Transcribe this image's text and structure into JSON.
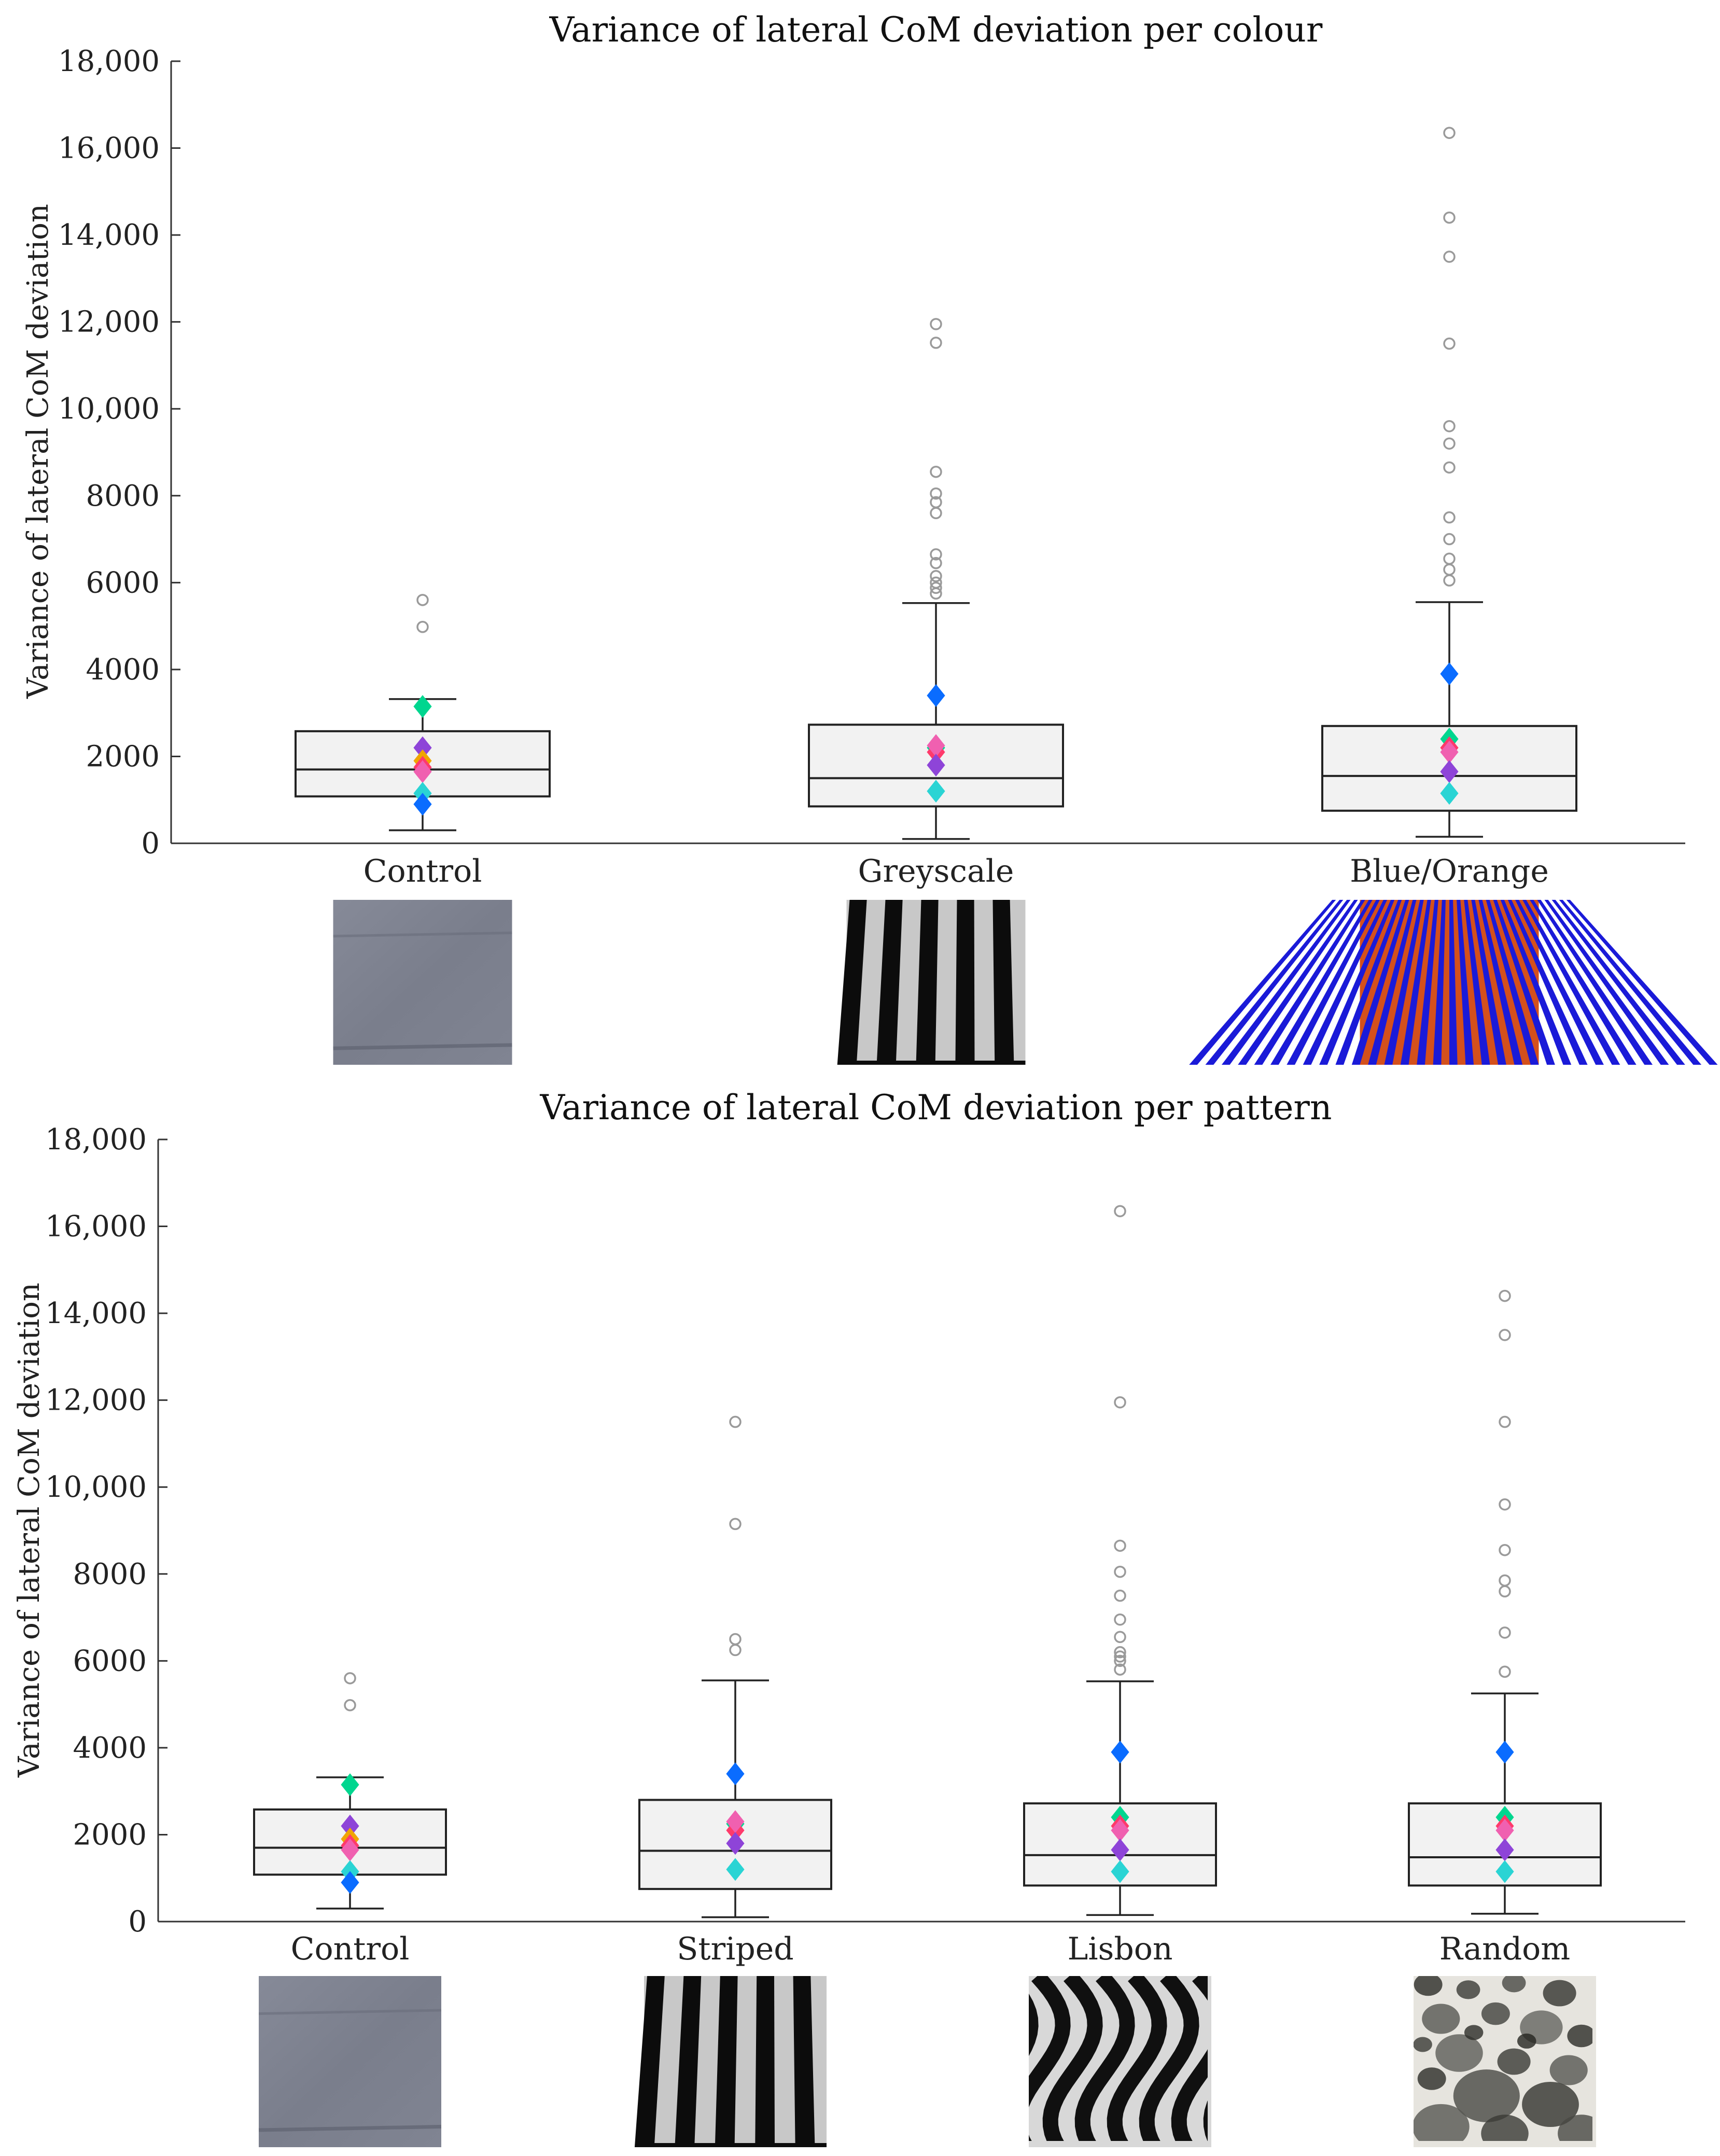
{
  "chart_data": [
    {
      "type": "boxplot",
      "title": "Variance of lateral CoM deviation per colour",
      "ylabel": "Variance of lateral CoM deviation",
      "xlabel": "",
      "ylim": [
        0,
        18000
      ],
      "yticks": [
        0,
        2000,
        4000,
        6000,
        8000,
        10000,
        12000,
        14000,
        16000,
        18000
      ],
      "ytick_labels": [
        "0",
        "2000",
        "4000",
        "6000",
        "8000",
        "10,000",
        "12,000",
        "14,000",
        "16,000",
        "18,000"
      ],
      "categories": [
        "Control",
        "Greyscale",
        "Blue/Orange"
      ],
      "boxes": [
        {
          "category": "Control",
          "whisker_low": 300,
          "q1": 1080,
          "median": 1700,
          "q3": 2580,
          "whisker_high": 3320,
          "outliers": [
            5600,
            4980
          ],
          "markers": [
            {
              "color": "#00d68f",
              "value": 3150
            },
            {
              "color": "#8e44d8",
              "value": 2200
            },
            {
              "color": "#f0a500",
              "value": 1900
            },
            {
              "color": "#ff3a6b",
              "value": 1750
            },
            {
              "color": "#f060b0",
              "value": 1650
            },
            {
              "color": "#2ad4d4",
              "value": 1150
            },
            {
              "color": "#0a6cff",
              "value": 900
            }
          ]
        },
        {
          "category": "Greyscale",
          "whisker_low": 100,
          "q1": 850,
          "median": 1500,
          "q3": 2730,
          "whisker_high": 5530,
          "outliers": [
            11950,
            11520,
            8550,
            8050,
            7850,
            7600,
            6650,
            6450,
            6150,
            6000,
            5880,
            5750
          ],
          "markers": [
            {
              "color": "#0a6cff",
              "value": 3400
            },
            {
              "color": "#00d68f",
              "value": 2200
            },
            {
              "color": "#ff3a6b",
              "value": 2100
            },
            {
              "color": "#f060b0",
              "value": 2250
            },
            {
              "color": "#8e44d8",
              "value": 1800
            },
            {
              "color": "#2ad4d4",
              "value": 1200
            }
          ]
        },
        {
          "category": "Blue/Orange",
          "whisker_low": 150,
          "q1": 750,
          "median": 1550,
          "q3": 2700,
          "whisker_high": 5550,
          "outliers": [
            16350,
            14400,
            13500,
            11500,
            9600,
            9200,
            8650,
            7500,
            7000,
            6550,
            6300,
            6050
          ],
          "markers": [
            {
              "color": "#0a6cff",
              "value": 3900
            },
            {
              "color": "#00d68f",
              "value": 2400
            },
            {
              "color": "#ff3a6b",
              "value": 2200
            },
            {
              "color": "#f060b0",
              "value": 2100
            },
            {
              "color": "#8e44d8",
              "value": 1650
            },
            {
              "color": "#2ad4d4",
              "value": 1150
            }
          ]
        }
      ]
    },
    {
      "type": "boxplot",
      "title": "Variance of lateral CoM deviation per pattern",
      "ylabel": "Variance of lateral CoM deviation",
      "xlabel": "",
      "ylim": [
        0,
        18000
      ],
      "yticks": [
        0,
        2000,
        4000,
        6000,
        8000,
        10000,
        12000,
        14000,
        16000,
        18000
      ],
      "ytick_labels": [
        "0",
        "2000",
        "4000",
        "6000",
        "8000",
        "10,000",
        "12,000",
        "14,000",
        "16,000",
        "18,000"
      ],
      "categories": [
        "Control",
        "Striped",
        "Lisbon",
        "Random"
      ],
      "boxes": [
        {
          "category": "Control",
          "whisker_low": 300,
          "q1": 1080,
          "median": 1700,
          "q3": 2580,
          "whisker_high": 3320,
          "outliers": [
            5600,
            4980
          ],
          "markers": [
            {
              "color": "#00d68f",
              "value": 3150
            },
            {
              "color": "#8e44d8",
              "value": 2200
            },
            {
              "color": "#f0a500",
              "value": 1900
            },
            {
              "color": "#ff3a6b",
              "value": 1750
            },
            {
              "color": "#f060b0",
              "value": 1650
            },
            {
              "color": "#2ad4d4",
              "value": 1150
            },
            {
              "color": "#0a6cff",
              "value": 900
            }
          ]
        },
        {
          "category": "Striped",
          "whisker_low": 100,
          "q1": 750,
          "median": 1630,
          "q3": 2800,
          "whisker_high": 5550,
          "outliers": [
            11500,
            9150,
            6500,
            6250
          ],
          "markers": [
            {
              "color": "#0a6cff",
              "value": 3400
            },
            {
              "color": "#00d68f",
              "value": 2250
            },
            {
              "color": "#ff3a6b",
              "value": 2100
            },
            {
              "color": "#f060b0",
              "value": 2300
            },
            {
              "color": "#8e44d8",
              "value": 1800
            },
            {
              "color": "#2ad4d4",
              "value": 1200
            }
          ]
        },
        {
          "category": "Lisbon",
          "whisker_low": 150,
          "q1": 830,
          "median": 1530,
          "q3": 2720,
          "whisker_high": 5530,
          "outliers": [
            16350,
            11950,
            8650,
            8050,
            7500,
            6950,
            6550,
            6200,
            6100,
            6000,
            5800
          ],
          "markers": [
            {
              "color": "#0a6cff",
              "value": 3900
            },
            {
              "color": "#00d68f",
              "value": 2400
            },
            {
              "color": "#ff3a6b",
              "value": 2200
            },
            {
              "color": "#f060b0",
              "value": 2100
            },
            {
              "color": "#8e44d8",
              "value": 1650
            },
            {
              "color": "#2ad4d4",
              "value": 1150
            }
          ]
        },
        {
          "category": "Random",
          "whisker_low": 180,
          "q1": 830,
          "median": 1480,
          "q3": 2720,
          "whisker_high": 5250,
          "outliers": [
            14400,
            13500,
            11500,
            9600,
            8550,
            7850,
            7600,
            6650,
            5750
          ],
          "markers": [
            {
              "color": "#0a6cff",
              "value": 3900
            },
            {
              "color": "#00d68f",
              "value": 2400
            },
            {
              "color": "#ff3a6b",
              "value": 2200
            },
            {
              "color": "#f060b0",
              "value": 2100
            },
            {
              "color": "#8e44d8",
              "value": 1650
            },
            {
              "color": "#2ad4d4",
              "value": 1150
            }
          ]
        }
      ]
    }
  ],
  "swatches": {
    "top": [
      {
        "category": "Control",
        "pattern": "plain-grey",
        "icon": "control-swatch"
      },
      {
        "category": "Greyscale",
        "pattern": "bw-stripes",
        "icon": "greyscale-stripes-swatch"
      },
      {
        "category": "Blue/Orange",
        "pattern": "blue-orange-stripes",
        "icon": "blue-orange-stripes-swatch"
      }
    ],
    "bottom": [
      {
        "category": "Control",
        "pattern": "plain-grey",
        "icon": "control-swatch"
      },
      {
        "category": "Striped",
        "pattern": "bw-stripes",
        "icon": "striped-swatch"
      },
      {
        "category": "Lisbon",
        "pattern": "wavy-stripes",
        "icon": "lisbon-wave-swatch"
      },
      {
        "category": "Random",
        "pattern": "random-blobs",
        "icon": "random-blobs-swatch"
      }
    ]
  },
  "colors": {
    "box_fill": "#f2f2f2",
    "outlier": "#9a9a9a",
    "swatch_grey": "#7e8291",
    "blue": "#1a1ad8",
    "orange": "#d4501c"
  }
}
